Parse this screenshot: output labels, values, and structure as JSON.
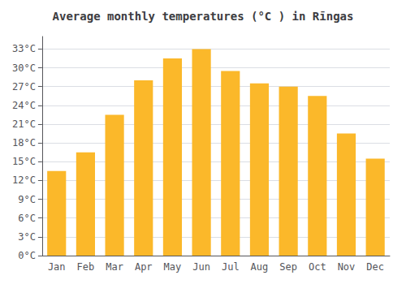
{
  "chart_data": {
    "type": "bar",
    "title": "Average monthly temperatures (°C ) in Rīngas",
    "categories": [
      "Jan",
      "Feb",
      "Mar",
      "Apr",
      "May",
      "Jun",
      "Jul",
      "Aug",
      "Sep",
      "Oct",
      "Nov",
      "Dec"
    ],
    "values": [
      13.5,
      16.5,
      22.5,
      28.0,
      31.5,
      33.0,
      29.5,
      27.5,
      27.0,
      25.5,
      19.5,
      15.5
    ],
    "color": "#FBB82A",
    "ylim": [
      0,
      35
    ],
    "yticks": [
      {
        "value": 0,
        "label": "0°C"
      },
      {
        "value": 3,
        "label": "3°C"
      },
      {
        "value": 6,
        "label": "6°C"
      },
      {
        "value": 9,
        "label": "9°C"
      },
      {
        "value": 12,
        "label": "12°C"
      },
      {
        "value": 15,
        "label": "15°C"
      },
      {
        "value": 18,
        "label": "18°C"
      },
      {
        "value": 21,
        "label": "21°C"
      },
      {
        "value": 24,
        "label": "24°C"
      },
      {
        "value": 27,
        "label": "27°C"
      },
      {
        "value": 30,
        "label": "30°C"
      },
      {
        "value": 33,
        "label": "33°C"
      }
    ],
    "grid": true
  }
}
